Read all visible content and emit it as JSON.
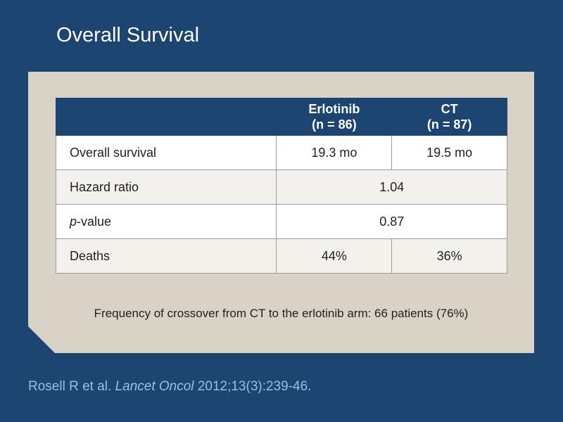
{
  "slide": {
    "title": "Overall Survival"
  },
  "table": {
    "headers": [
      {
        "name": "Erlotinib",
        "n": "(n = 86)"
      },
      {
        "name": "CT",
        "n": "(n = 87)"
      }
    ],
    "rows": [
      {
        "label": "Overall survival",
        "values": [
          "19.3 mo",
          "19.5 mo"
        ]
      },
      {
        "label": "Hazard ratio",
        "combined": "1.04"
      },
      {
        "label_italic": "p",
        "label_rest": "-value",
        "combined": "0.87"
      },
      {
        "label": "Deaths",
        "values": [
          "44%",
          "36%"
        ]
      }
    ]
  },
  "note": "Frequency of crossover from CT to the erlotinib arm: 66 patients (76%)",
  "citation": {
    "authors": "Rosell R et al.",
    "journal": "Lancet Oncol",
    "ref": "2012;13(3):239-46."
  },
  "colors": {
    "background": "#1c4571",
    "panel": "#d8d3c6",
    "citation": "#8fc3e6"
  }
}
